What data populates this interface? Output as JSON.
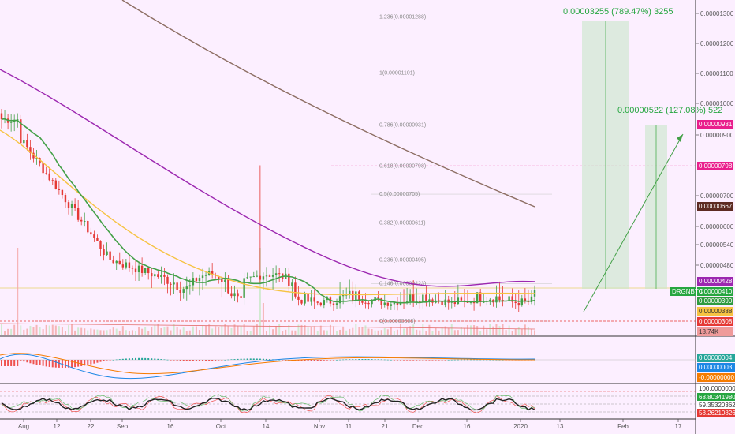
{
  "chart_data": {
    "type": "candlestick",
    "symbol": "DRGNBTC",
    "x_tick_labels": [
      "Aug",
      "12",
      "22",
      "Sep",
      "16",
      "Oct",
      "14",
      "Nov",
      "11",
      "21",
      "Dec",
      "16",
      "2020",
      "13",
      "Feb",
      "17"
    ],
    "y_tick_labels": [
      "0.00001300",
      "0.00001200",
      "0.00001100",
      "0.00001000",
      "0.00000900",
      "0.00000700",
      "0.00000600",
      "0.00000540",
      "0.00000480",
      "0.00000428",
      "0.00000390",
      "0.00000308"
    ],
    "fib_levels": [
      {
        "label": "1.236(0.00001288)",
        "value": 1.288e-05
      },
      {
        "label": "1(0.00001101)",
        "value": 1.101e-05
      },
      {
        "label": "0.786(0.00000931)",
        "value": 9.31e-06
      },
      {
        "label": "0.618(0.00000798)",
        "value": 7.98e-06
      },
      {
        "label": "0.5(0.00000705)",
        "value": 7.05e-06
      },
      {
        "label": "0.382(0.00000611)",
        "value": 6.11e-06
      },
      {
        "label": "0.236(0.00000495)",
        "value": 4.95e-06
      },
      {
        "label": "0.146(0.00000423)",
        "value": 4.23e-06
      },
      {
        "label": "0(0.00000308)",
        "value": 3.08e-06
      }
    ],
    "price_tags": [
      {
        "label": "0.00000931",
        "value": 9.31e-06,
        "color": "#e91e8c",
        "text_color": "#ffffff"
      },
      {
        "label": "0.00000798",
        "value": 7.98e-06,
        "color": "#e91e8c",
        "text_color": "#ffffff"
      },
      {
        "label": "0.00000667",
        "value": 6.67e-06,
        "color": "#5d2b22",
        "text_color": "#ffffff"
      },
      {
        "label": "0.00000428",
        "value": 4.28e-06,
        "color": "#9c27b0",
        "text_color": "#ffffff"
      },
      {
        "label": "0.00000410",
        "value": 4.1e-06,
        "color": "#26a640",
        "text_color": "#ffffff",
        "prefix": "DRGNBTC"
      },
      {
        "label": "0.00000390",
        "value": 3.9e-06,
        "color": "#2e9b3e",
        "text_color": "#ffffff"
      },
      {
        "label": "0.00000388",
        "value": 3.88e-06,
        "color": "#f6c343",
        "text_color": "#333333"
      },
      {
        "label": "0.00000308",
        "value": 3.08e-06,
        "color": "#e53935",
        "text_color": "#ffffff"
      },
      {
        "label": "18.74K",
        "value": 2.95e-06,
        "color": "#ef9a9a",
        "text_color": "#333333"
      }
    ],
    "annotations": [
      {
        "text": "0.00003255 (789.47%) 3255"
      },
      {
        "text": "0.00000522 (127.08%) 522"
      }
    ],
    "macd_tags": [
      {
        "label": "0.00000004",
        "color": "#26a69a"
      },
      {
        "label": "0.00000003",
        "color": "#1e88e5"
      },
      {
        "label": "-0.00000000",
        "color": "#f57c00"
      }
    ],
    "rsi_tags": [
      {
        "label": "100.00000000",
        "color": "#ffffff"
      },
      {
        "label": "68.80341980",
        "color": "#26a640"
      },
      {
        "label": "59.35320362",
        "color": "#ffffff"
      },
      {
        "label": "58.26210826",
        "color": "#e53935"
      }
    ]
  }
}
